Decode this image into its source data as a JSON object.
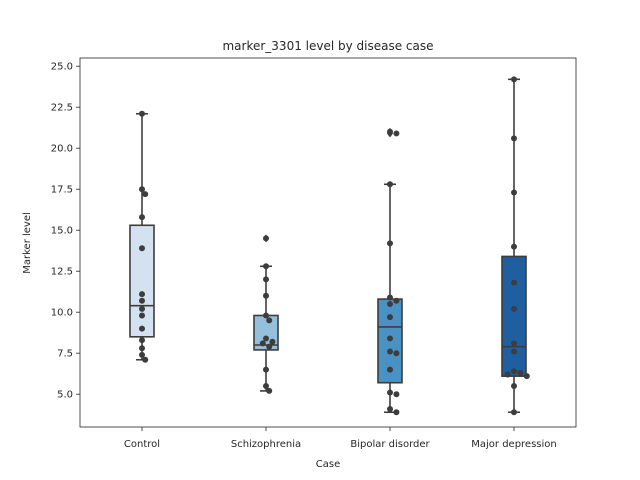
{
  "chart_data": {
    "type": "box",
    "title": "marker_3301 level by disease case",
    "xlabel": "Case",
    "ylabel": "Marker level",
    "ylim": [
      3.0,
      25.5
    ],
    "yticks": [
      "5.0",
      "7.5",
      "10.0",
      "12.5",
      "15.0",
      "17.5",
      "20.0",
      "22.5",
      "25.0"
    ],
    "grid": false,
    "categories": [
      "Control",
      "Schizophrenia",
      "Bipolar disorder",
      "Major depression"
    ],
    "colors": [
      "#d3e1f1",
      "#94bfdd",
      "#4a91c4",
      "#1f5fa0"
    ],
    "boxes": [
      {
        "q1": 8.5,
        "median": 10.4,
        "q3": 15.3,
        "whisker_low": 7.1,
        "whisker_high": 22.1,
        "outliers": []
      },
      {
        "q1": 7.7,
        "median": 8.0,
        "q3": 9.8,
        "whisker_low": 5.2,
        "whisker_high": 12.8,
        "outliers": [
          14.5
        ]
      },
      {
        "q1": 5.7,
        "median": 9.1,
        "q3": 10.8,
        "whisker_low": 3.9,
        "whisker_high": 17.8,
        "outliers": [
          20.9,
          21.0
        ]
      },
      {
        "q1": 6.1,
        "median": 7.9,
        "q3": 13.4,
        "whisker_low": 3.9,
        "whisker_high": 24.2,
        "outliers": []
      }
    ],
    "points": [
      [
        22.1,
        17.5,
        17.2,
        15.8,
        13.9,
        11.1,
        10.7,
        10.2,
        9.8,
        9.0,
        8.3,
        7.8,
        7.4,
        7.1
      ],
      [
        14.5,
        12.8,
        12.0,
        11.0,
        9.8,
        9.5,
        8.4,
        8.2,
        8.1,
        7.9,
        6.5,
        5.5,
        5.2
      ],
      [
        21.0,
        20.9,
        17.8,
        14.2,
        10.9,
        10.7,
        10.5,
        9.7,
        8.4,
        7.6,
        7.5,
        6.5,
        5.1,
        5.0,
        4.1,
        3.9
      ],
      [
        24.2,
        20.6,
        17.3,
        14.0,
        11.8,
        10.2,
        8.1,
        7.6,
        6.4,
        6.3,
        6.2,
        6.1,
        5.5,
        3.9
      ]
    ]
  }
}
